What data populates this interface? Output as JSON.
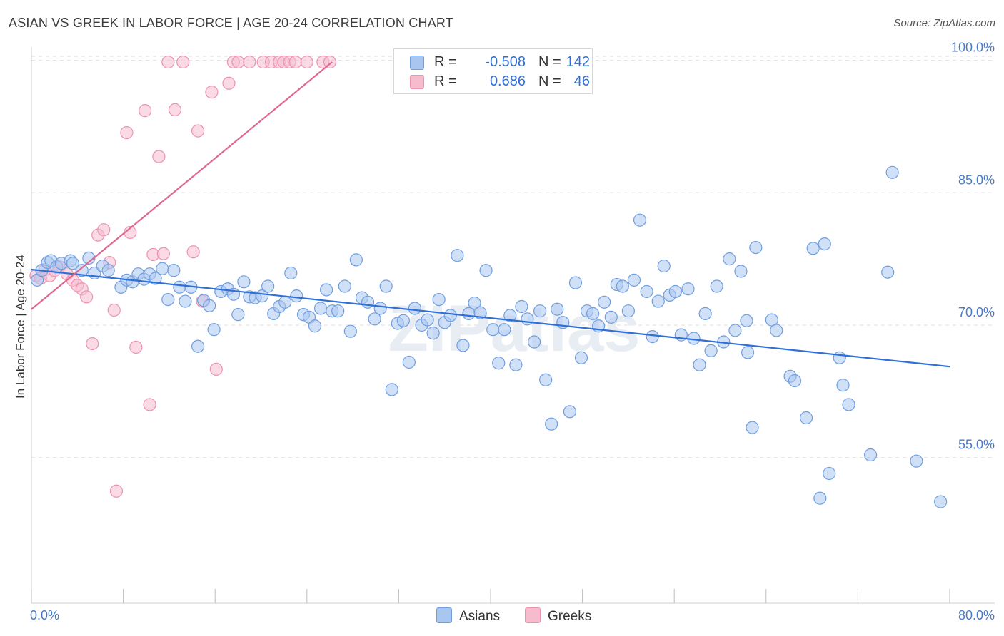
{
  "title": "ASIAN VS GREEK IN LABOR FORCE | AGE 20-24 CORRELATION CHART",
  "source": "Source: ZipAtlas.com",
  "watermark": "ZIPatlas",
  "colors": {
    "asians_fill": "#a9c6f0",
    "asians_stroke": "#6f9ee0",
    "asians_line": "#2e6fd8",
    "greeks_fill": "#f6bccd",
    "greeks_stroke": "#ec93b0",
    "greeks_line": "#e0688f",
    "tick_label": "#4a79c9",
    "grid": "#dddddd"
  },
  "legend": {
    "r_label": "R =",
    "n_label": "N =",
    "rows": [
      {
        "name": "Asians",
        "r": "-0.508",
        "n": "142"
      },
      {
        "name": "Greeks",
        "r": "0.686",
        "n": "46"
      }
    ]
  },
  "chart_data": {
    "type": "scatter",
    "title": "ASIAN VS GREEK IN LABOR FORCE | AGE 20-24 CORRELATION CHART",
    "xlabel": "",
    "ylabel": "In Labor Force | Age 20-24",
    "xlim": [
      0,
      80
    ],
    "ylim": [
      38.5,
      101.5
    ],
    "x_tick_labels": [
      "0.0%",
      "80.0%"
    ],
    "y_ticks": [
      55,
      70,
      85,
      100
    ],
    "y_tick_labels": [
      "55.0%",
      "70.0%",
      "85.0%",
      "100.0%"
    ],
    "grid": "horizontal dashed",
    "legend_position": "top-center",
    "series": [
      {
        "name": "Asians",
        "trend": {
          "x": [
            0,
            80
          ],
          "y": [
            76.3,
            65.3
          ]
        },
        "points": [
          [
            0.5,
            75.1
          ],
          [
            0.9,
            76.2
          ],
          [
            1.4,
            77.1
          ],
          [
            1.7,
            77.3
          ],
          [
            2.2,
            76.6
          ],
          [
            2.6,
            77.0
          ],
          [
            3.4,
            77.3
          ],
          [
            3.6,
            77.0
          ],
          [
            4.4,
            76.2
          ],
          [
            5.0,
            77.6
          ],
          [
            5.5,
            75.9
          ],
          [
            6.2,
            76.7
          ],
          [
            6.7,
            76.2
          ],
          [
            7.8,
            74.3
          ],
          [
            8.3,
            75.1
          ],
          [
            8.8,
            74.9
          ],
          [
            9.3,
            75.8
          ],
          [
            9.8,
            75.2
          ],
          [
            10.3,
            75.8
          ],
          [
            10.8,
            75.3
          ],
          [
            11.4,
            76.4
          ],
          [
            11.9,
            72.9
          ],
          [
            12.4,
            76.2
          ],
          [
            12.9,
            74.3
          ],
          [
            13.4,
            72.7
          ],
          [
            13.9,
            74.3
          ],
          [
            14.5,
            67.6
          ],
          [
            15.0,
            72.8
          ],
          [
            15.5,
            72.2
          ],
          [
            15.9,
            69.5
          ],
          [
            16.5,
            73.8
          ],
          [
            17.1,
            74.1
          ],
          [
            17.6,
            73.5
          ],
          [
            18.0,
            71.2
          ],
          [
            18.5,
            74.9
          ],
          [
            19.0,
            73.2
          ],
          [
            19.5,
            73.1
          ],
          [
            20.1,
            73.3
          ],
          [
            20.6,
            74.4
          ],
          [
            21.1,
            71.3
          ],
          [
            21.6,
            72.1
          ],
          [
            22.1,
            72.6
          ],
          [
            22.6,
            75.9
          ],
          [
            23.1,
            73.3
          ],
          [
            23.7,
            71.2
          ],
          [
            24.2,
            70.9
          ],
          [
            24.7,
            69.9
          ],
          [
            25.2,
            71.9
          ],
          [
            25.7,
            74.0
          ],
          [
            26.2,
            71.6
          ],
          [
            26.7,
            71.6
          ],
          [
            27.3,
            74.4
          ],
          [
            27.8,
            69.3
          ],
          [
            28.3,
            77.4
          ],
          [
            28.8,
            73.1
          ],
          [
            29.3,
            72.6
          ],
          [
            29.9,
            70.7
          ],
          [
            30.4,
            71.9
          ],
          [
            30.9,
            74.4
          ],
          [
            31.4,
            62.7
          ],
          [
            31.9,
            70.2
          ],
          [
            32.4,
            70.5
          ],
          [
            32.9,
            65.8
          ],
          [
            33.4,
            71.9
          ],
          [
            34.0,
            70.0
          ],
          [
            34.5,
            70.6
          ],
          [
            35.0,
            69.1
          ],
          [
            35.5,
            72.9
          ],
          [
            36.0,
            70.3
          ],
          [
            36.5,
            71.1
          ],
          [
            37.1,
            77.9
          ],
          [
            37.6,
            67.7
          ],
          [
            38.1,
            71.3
          ],
          [
            38.6,
            72.5
          ],
          [
            39.1,
            71.4
          ],
          [
            39.6,
            76.2
          ],
          [
            40.2,
            69.5
          ],
          [
            40.7,
            65.7
          ],
          [
            41.2,
            69.5
          ],
          [
            41.7,
            71.1
          ],
          [
            42.2,
            65.5
          ],
          [
            42.7,
            72.1
          ],
          [
            43.2,
            70.7
          ],
          [
            43.8,
            68.1
          ],
          [
            44.3,
            71.6
          ],
          [
            44.8,
            63.8
          ],
          [
            45.3,
            58.8
          ],
          [
            45.8,
            71.8
          ],
          [
            46.3,
            70.3
          ],
          [
            46.9,
            60.2
          ],
          [
            47.4,
            74.8
          ],
          [
            47.9,
            66.3
          ],
          [
            48.4,
            71.6
          ],
          [
            48.9,
            71.3
          ],
          [
            49.4,
            69.9
          ],
          [
            49.9,
            72.6
          ],
          [
            50.5,
            70.9
          ],
          [
            51.0,
            74.6
          ],
          [
            51.5,
            74.4
          ],
          [
            52.0,
            71.6
          ],
          [
            52.5,
            75.1
          ],
          [
            53.0,
            81.9
          ],
          [
            53.6,
            73.8
          ],
          [
            54.1,
            68.7
          ],
          [
            54.6,
            72.7
          ],
          [
            55.1,
            76.7
          ],
          [
            55.6,
            73.4
          ],
          [
            56.1,
            73.8
          ],
          [
            56.6,
            68.9
          ],
          [
            57.2,
            74.1
          ],
          [
            57.7,
            68.5
          ],
          [
            58.2,
            65.5
          ],
          [
            58.7,
            71.3
          ],
          [
            59.2,
            67.1
          ],
          [
            59.7,
            74.4
          ],
          [
            60.3,
            68.1
          ],
          [
            60.8,
            77.5
          ],
          [
            61.3,
            69.4
          ],
          [
            61.8,
            76.1
          ],
          [
            62.3,
            70.5
          ],
          [
            62.8,
            58.4
          ],
          [
            62.4,
            66.9
          ],
          [
            63.1,
            78.8
          ],
          [
            64.5,
            70.6
          ],
          [
            64.9,
            69.4
          ],
          [
            66.1,
            64.2
          ],
          [
            66.5,
            63.7
          ],
          [
            67.5,
            59.5
          ],
          [
            68.1,
            78.7
          ],
          [
            68.7,
            50.4
          ],
          [
            69.5,
            53.2
          ],
          [
            70.4,
            66.3
          ],
          [
            70.7,
            63.2
          ],
          [
            71.2,
            61.0
          ],
          [
            73.1,
            55.3
          ],
          [
            74.6,
            76.0
          ],
          [
            75.0,
            87.3
          ],
          [
            77.1,
            54.6
          ],
          [
            79.2,
            50.0
          ],
          [
            69.1,
            79.2
          ]
        ]
      },
      {
        "name": "Greeks",
        "trend": {
          "x": [
            0,
            26.2
          ],
          "y": [
            71.8,
            99.8
          ]
        },
        "points": [
          [
            0.4,
            75.6
          ],
          [
            0.8,
            75.3
          ],
          [
            1.2,
            76.3
          ],
          [
            1.6,
            75.6
          ],
          [
            2.0,
            76.2
          ],
          [
            2.4,
            76.6
          ],
          [
            3.1,
            75.8
          ],
          [
            3.6,
            75.1
          ],
          [
            4.0,
            74.5
          ],
          [
            4.4,
            74.1
          ],
          [
            4.8,
            73.2
          ],
          [
            5.3,
            67.9
          ],
          [
            5.8,
            80.2
          ],
          [
            6.3,
            80.8
          ],
          [
            6.8,
            77.1
          ],
          [
            7.2,
            71.7
          ],
          [
            8.3,
            91.8
          ],
          [
            8.6,
            80.5
          ],
          [
            9.1,
            67.5
          ],
          [
            9.9,
            94.3
          ],
          [
            10.3,
            61.0
          ],
          [
            10.6,
            78.0
          ],
          [
            11.1,
            89.1
          ],
          [
            11.5,
            78.1
          ],
          [
            11.9,
            99.8
          ],
          [
            12.5,
            94.4
          ],
          [
            13.2,
            99.8
          ],
          [
            14.1,
            78.3
          ],
          [
            14.5,
            92.0
          ],
          [
            14.9,
            72.7
          ],
          [
            15.7,
            96.4
          ],
          [
            16.1,
            65.0
          ],
          [
            17.2,
            97.4
          ],
          [
            17.6,
            99.8
          ],
          [
            18.0,
            99.8
          ],
          [
            19.0,
            99.8
          ],
          [
            20.2,
            99.8
          ],
          [
            20.9,
            99.8
          ],
          [
            21.6,
            99.8
          ],
          [
            22.0,
            99.8
          ],
          [
            22.5,
            99.8
          ],
          [
            23.0,
            99.8
          ],
          [
            24.0,
            99.8
          ],
          [
            25.4,
            99.8
          ],
          [
            26.0,
            99.8
          ],
          [
            7.4,
            51.2
          ]
        ]
      }
    ]
  }
}
